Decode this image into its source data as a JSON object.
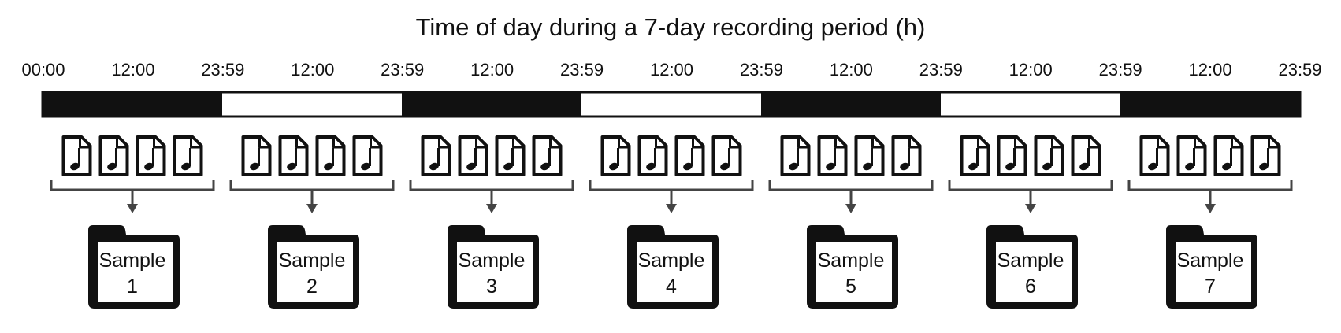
{
  "title": "Time of day during a 7-day recording period (h)",
  "time_labels": [
    "00:00",
    "12:00",
    "23:59",
    "12:00",
    "23:59",
    "12:00",
    "23:59",
    "12:00",
    "23:59",
    "12:00",
    "23:59",
    "12:00",
    "23:59",
    "12:00",
    "23:59"
  ],
  "day_segments": [
    {
      "shade": "dark"
    },
    {
      "shade": "light"
    },
    {
      "shade": "dark"
    },
    {
      "shade": "light"
    },
    {
      "shade": "dark"
    },
    {
      "shade": "light"
    },
    {
      "shade": "dark"
    }
  ],
  "files_per_day": 4,
  "file_icon": "music-file-icon",
  "folder_icon": "folder-icon",
  "sample_prefix": "Sample",
  "samples": [
    "1",
    "2",
    "3",
    "4",
    "5",
    "6",
    "7"
  ],
  "colors": {
    "dark": "#111111",
    "light": "#ffffff",
    "stroke": "#111111",
    "bracket": "#444444"
  }
}
